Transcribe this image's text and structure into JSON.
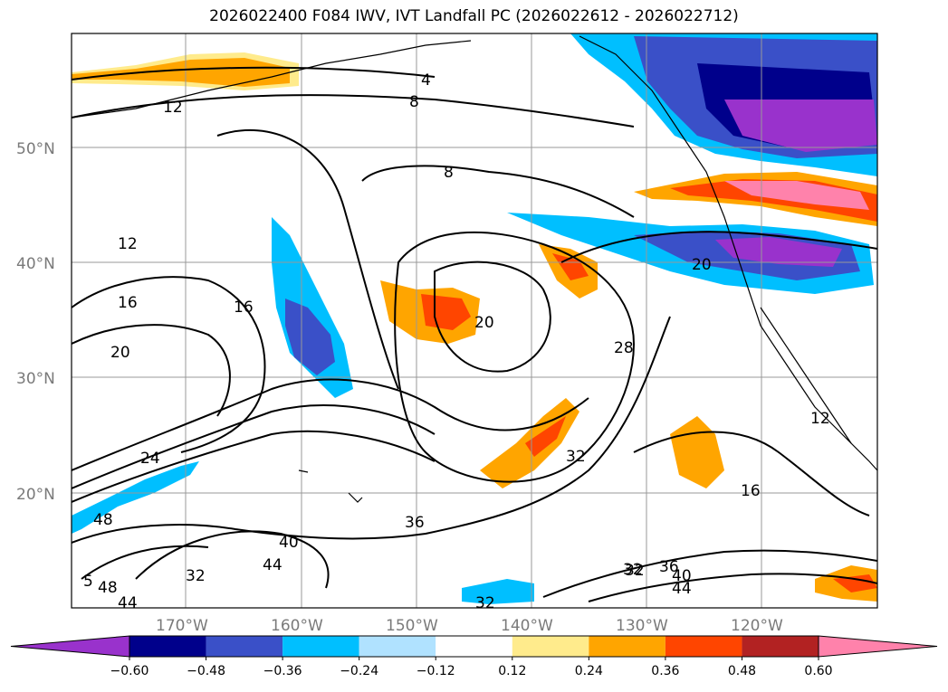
{
  "title": "2026022400 F084 IWV, IVT Landfall PC (2026022612 - 2026022712)",
  "lat_labels": [
    "50°N",
    "40°N",
    "30°N",
    "20°N"
  ],
  "lon_labels": [
    "170°W",
    "160°W",
    "150°W",
    "140°W",
    "130°W",
    "120°W"
  ],
  "contour_labels": [
    "4",
    "8",
    "12",
    "8",
    "12",
    "16",
    "16",
    "20",
    "20",
    "20",
    "24",
    "28",
    "32",
    "32",
    "36",
    "40",
    "44",
    "48",
    "48",
    "44",
    "32",
    "32",
    "36",
    "40",
    "44",
    "16",
    "12",
    "32",
    "5"
  ],
  "colorbar": {
    "ticks": [
      "−0.60",
      "−0.48",
      "−0.36",
      "−0.24",
      "−0.12",
      "0.12",
      "0.24",
      "0.36",
      "0.48",
      "0.60"
    ],
    "colors": [
      "#9932cc",
      "#00008b",
      "#3a50c8",
      "#00bfff",
      "#b0e2ff",
      "#ffffff",
      "#ffeb8c",
      "#ffa500",
      "#ff4500",
      "#b22222",
      "#ff82ab"
    ]
  },
  "colors": {
    "land_outline": "#000000",
    "grid": "#999999",
    "contour": "#000000"
  }
}
